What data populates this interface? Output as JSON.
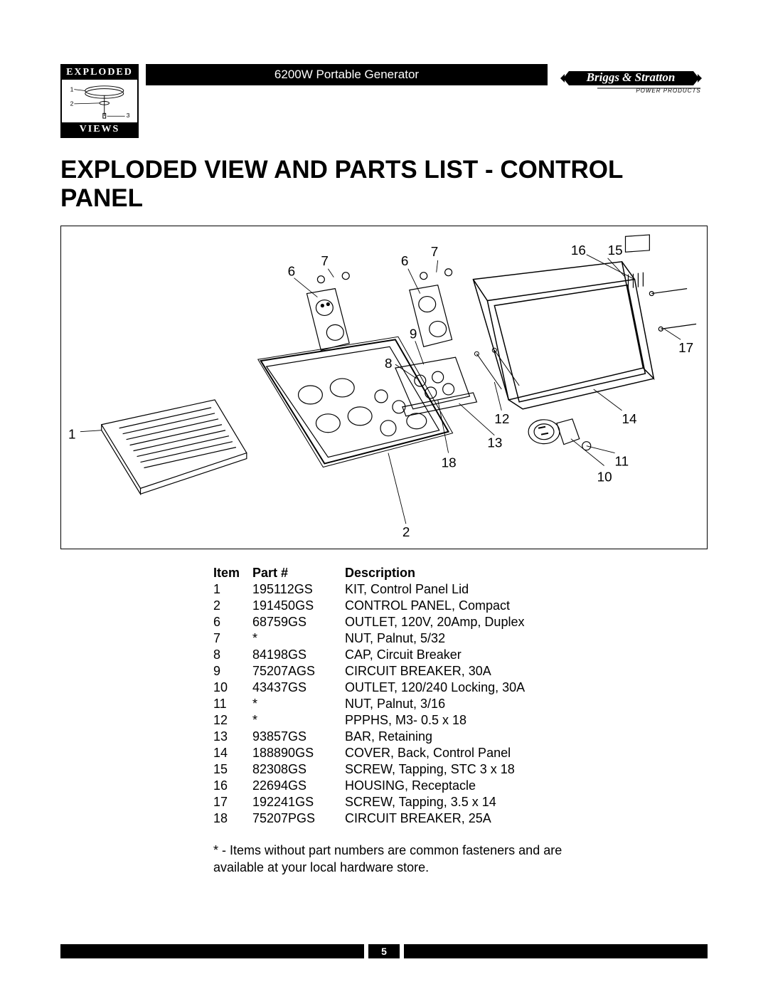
{
  "header": {
    "badge_top": "EXPLODED",
    "badge_bot": "VIEWS",
    "title_bar": "6200W Portable Generator",
    "brand_top": "Briggs & Stratton",
    "brand_sub": "POWER PRODUCTS"
  },
  "page_title": "EXPLODED VIEW AND PARTS LIST - CONTROL PANEL",
  "diagram": {
    "callouts": {
      "n1": "1",
      "n2": "2",
      "n6a": "6",
      "n6b": "6",
      "n7a": "7",
      "n7b": "7",
      "n8": "8",
      "n9": "9",
      "n10": "10",
      "n11": "11",
      "n12": "12",
      "n13": "13",
      "n14": "14",
      "n15": "15",
      "n16": "16",
      "n17": "17",
      "n18": "18"
    }
  },
  "table": {
    "headers": {
      "item": "Item",
      "part": "Part #",
      "desc": "Description"
    },
    "rows": [
      {
        "item": "1",
        "part": "195112GS",
        "desc": "KIT, Control Panel Lid"
      },
      {
        "item": "2",
        "part": "191450GS",
        "desc": "CONTROL PANEL, Compact"
      },
      {
        "item": "6",
        "part": "68759GS",
        "desc": "OUTLET, 120V, 20Amp, Duplex"
      },
      {
        "item": "7",
        "part": "*",
        "desc": "NUT, Palnut, 5/32"
      },
      {
        "item": "8",
        "part": "84198GS",
        "desc": "CAP, Circuit Breaker"
      },
      {
        "item": "9",
        "part": "75207AGS",
        "desc": "CIRCUIT BREAKER, 30A"
      },
      {
        "item": "10",
        "part": "43437GS",
        "desc": "OUTLET, 120/240 Locking, 30A"
      },
      {
        "item": "11",
        "part": "*",
        "desc": "NUT, Palnut, 3/16"
      },
      {
        "item": "12",
        "part": "*",
        "desc": "PPPHS, M3- 0.5 x 18"
      },
      {
        "item": "13",
        "part": "93857GS",
        "desc": "BAR, Retaining"
      },
      {
        "item": "14",
        "part": "188890GS",
        "desc": "COVER, Back, Control Panel"
      },
      {
        "item": "15",
        "part": "82308GS",
        "desc": "SCREW, Tapping, STC 3 x 18"
      },
      {
        "item": "16",
        "part": "22694GS",
        "desc": "HOUSING, Receptacle"
      },
      {
        "item": "17",
        "part": "192241GS",
        "desc": "SCREW, Tapping, 3.5 x 14"
      },
      {
        "item": "18",
        "part": "75207PGS",
        "desc": "CIRCUIT BREAKER, 25A"
      }
    ]
  },
  "footnote": "* - Items without part numbers are common fasteners and are available at your local hardware store.",
  "page_number": "5"
}
